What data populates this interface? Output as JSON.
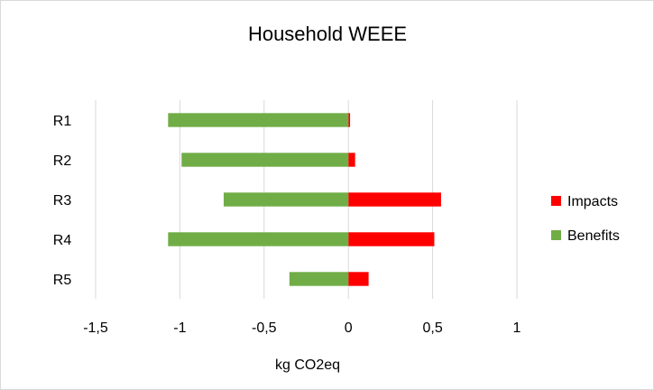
{
  "chart_data": {
    "type": "bar",
    "orientation": "horizontal",
    "stacked": true,
    "title": "Household WEEE",
    "xlabel": "kg CO2eq",
    "ylabel": "",
    "categories": [
      "R1",
      "R2",
      "R3",
      "R4",
      "R5"
    ],
    "xlim": [
      -1.5,
      1
    ],
    "xticks": [
      -1.5,
      -1,
      -0.5,
      0,
      0.5,
      1
    ],
    "xtick_labels": [
      "-1,5",
      "-1",
      "-0,5",
      "0",
      "0,5",
      "1"
    ],
    "grid": true,
    "legend_position": "right",
    "series": [
      {
        "name": "Impacts",
        "color": "#ff0000",
        "values": [
          0.01,
          0.04,
          0.55,
          0.51,
          0.12
        ]
      },
      {
        "name": "Benefits",
        "color": "#70ad47",
        "values": [
          -1.07,
          -0.99,
          -0.74,
          -1.07,
          -0.35
        ]
      }
    ]
  }
}
